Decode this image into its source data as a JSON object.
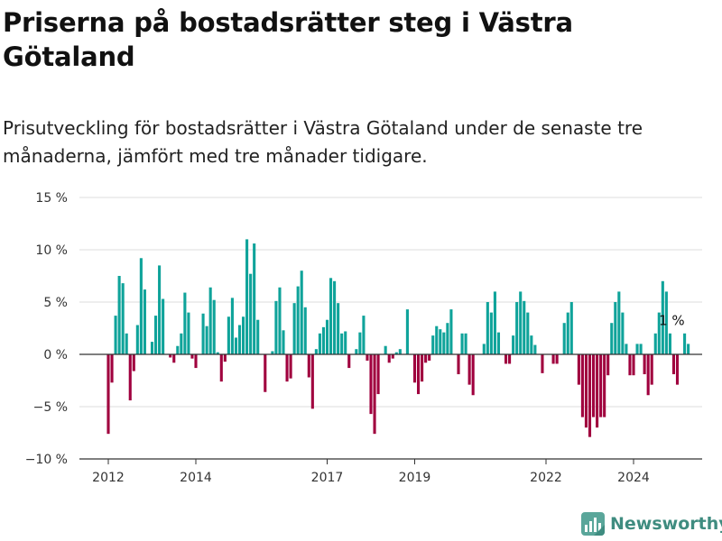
{
  "title": "Priserna på bostadsrätter steg i Västra Götaland",
  "subtitle": "Prisutveckling för bostadsrätter i Västra Götaland under de senaste tre månaderna, jämfört med tre månader tidigare.",
  "brand": {
    "name": "Newsworthy",
    "color": "#3f8c80"
  },
  "chart_data": {
    "type": "bar",
    "ylim": [
      -10,
      15
    ],
    "yticks": [
      15,
      10,
      5,
      0,
      -5,
      -10
    ],
    "yticklabels": [
      "15 %",
      "10 %",
      "5 %",
      "0 %",
      "−5 %",
      "−10 %"
    ],
    "xlim": [
      2011.5,
      2025.3
    ],
    "xticks": [
      2012,
      2014,
      2017,
      2019,
      2022,
      2024
    ],
    "xticklabels": [
      "2012",
      "2014",
      "2017",
      "2019",
      "2022",
      "2024"
    ],
    "colors": {
      "positive": "#0fa39a",
      "negative": "#a0003e"
    },
    "grid": true,
    "annotation": {
      "text": "1 %",
      "x": 2024.75,
      "y": 2.3
    },
    "x_start": 2012,
    "x_step": 0.0833333,
    "values": [
      -7.6,
      -2.7,
      3.7,
      7.5,
      6.8,
      2.0,
      -4.4,
      -1.6,
      2.8,
      9.2,
      6.2,
      0,
      1.2,
      3.7,
      8.5,
      5.3,
      0,
      -0.3,
      -0.8,
      0.8,
      2.0,
      5.9,
      4.0,
      -0.4,
      -1.3,
      0,
      3.9,
      2.7,
      6.4,
      5.2,
      0.2,
      -2.6,
      -0.7,
      3.6,
      5.4,
      1.6,
      2.8,
      3.6,
      11.0,
      7.7,
      10.6,
      3.3,
      0,
      -3.6,
      0,
      0.3,
      5.1,
      6.4,
      2.3,
      -2.6,
      -2.3,
      4.9,
      6.5,
      8.0,
      4.5,
      -2.2,
      -5.2,
      0.5,
      2.0,
      2.6,
      3.3,
      7.3,
      7.0,
      4.9,
      2.0,
      2.2,
      -1.3,
      0,
      0.5,
      2.1,
      3.7,
      -0.6,
      -5.7,
      -7.6,
      -3.8,
      0,
      0.8,
      -0.8,
      -0.4,
      0.2,
      0.5,
      0,
      4.3,
      0,
      -2.7,
      -3.8,
      -2.6,
      -0.8,
      -0.6,
      1.8,
      2.7,
      2.4,
      2.1,
      3.0,
      4.3,
      0,
      -1.9,
      2.0,
      2.0,
      -2.9,
      -3.9,
      0,
      0,
      1.0,
      5.0,
      4.0,
      6.0,
      2.1,
      0,
      -0.9,
      -0.9,
      1.8,
      5.0,
      6.0,
      5.1,
      4.0,
      1.8,
      0.9,
      0,
      -1.8,
      0,
      0,
      -0.9,
      -0.9,
      0,
      3.0,
      4.0,
      5.0,
      0,
      -2.9,
      -6.0,
      -7.0,
      -7.9,
      -6.0,
      -7.0,
      -6.0,
      -6.0,
      -2.0,
      3.0,
      5.0,
      6.0,
      4.0,
      1.0,
      -2.0,
      -2.0,
      1.0,
      1.0,
      -1.9,
      -3.9,
      -2.9,
      2.0,
      4.0,
      7.0,
      6.0,
      2.0,
      -1.9,
      -2.9,
      0,
      2.0,
      1.0
    ]
  }
}
